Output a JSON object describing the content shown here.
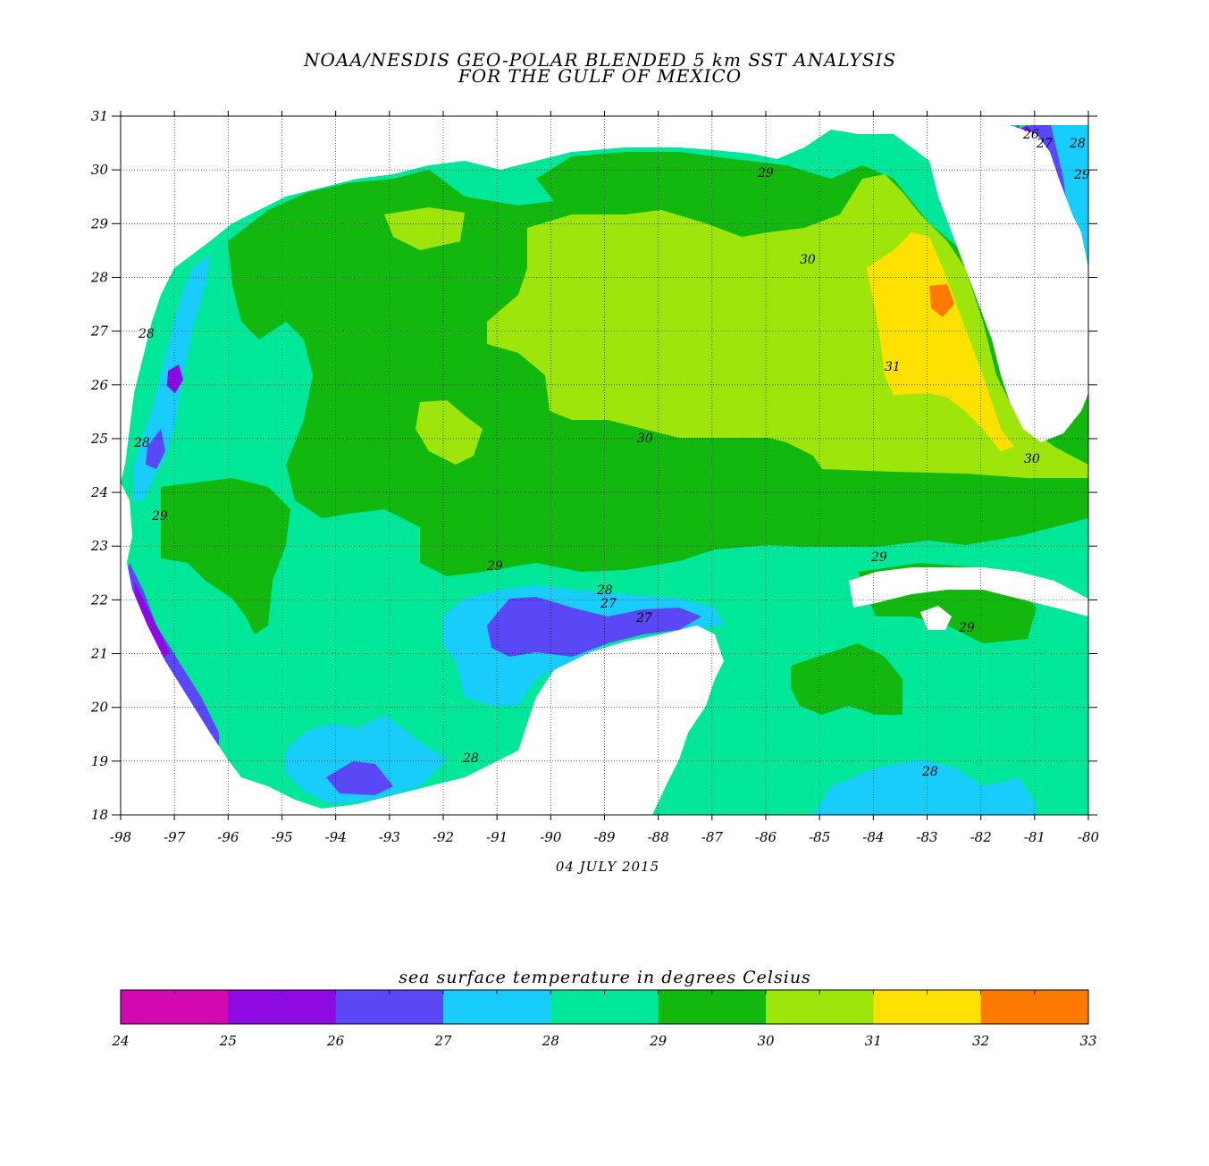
{
  "title": {
    "line1": "NOAA/NESDIS GEO-POLAR BLENDED 5 km SST ANALYSIS",
    "line2": "FOR THE GULF OF MEXICO"
  },
  "date": "04 JULY 2015",
  "axes": {
    "lon_ticks": [
      "-98",
      "-97",
      "-96",
      "-95",
      "-94",
      "-93",
      "-92",
      "-91",
      "-90",
      "-89",
      "-88",
      "-87",
      "-86",
      "-85",
      "-84",
      "-83",
      "-82",
      "-81",
      "-80"
    ],
    "lat_ticks": [
      "31",
      "30",
      "29",
      "28",
      "27",
      "26",
      "25",
      "24",
      "23",
      "22",
      "21",
      "20",
      "19",
      "18"
    ]
  },
  "colorbar": {
    "title": "sea surface temperature in degrees Celsius",
    "labels": [
      "24",
      "25",
      "26",
      "27",
      "28",
      "29",
      "30",
      "31",
      "32",
      "33"
    ],
    "colors": [
      "#d208b0",
      "#8e0ae2",
      "#5a48f6",
      "#18ccfb",
      "#00e79a",
      "#12b80e",
      "#9ee50c",
      "#ffe100",
      "#ff7a00"
    ]
  },
  "contour_labels": [
    {
      "text": "29"
    },
    {
      "text": "30"
    },
    {
      "text": "31"
    },
    {
      "text": "30"
    },
    {
      "text": "30"
    },
    {
      "text": "26"
    },
    {
      "text": "27"
    },
    {
      "text": "28"
    },
    {
      "text": "29"
    },
    {
      "text": "28"
    },
    {
      "text": "28"
    },
    {
      "text": "29"
    },
    {
      "text": "29"
    },
    {
      "text": "28"
    },
    {
      "text": "27"
    },
    {
      "text": "27"
    },
    {
      "text": "29"
    },
    {
      "text": "29"
    },
    {
      "text": "28"
    },
    {
      "text": "28"
    }
  ]
}
